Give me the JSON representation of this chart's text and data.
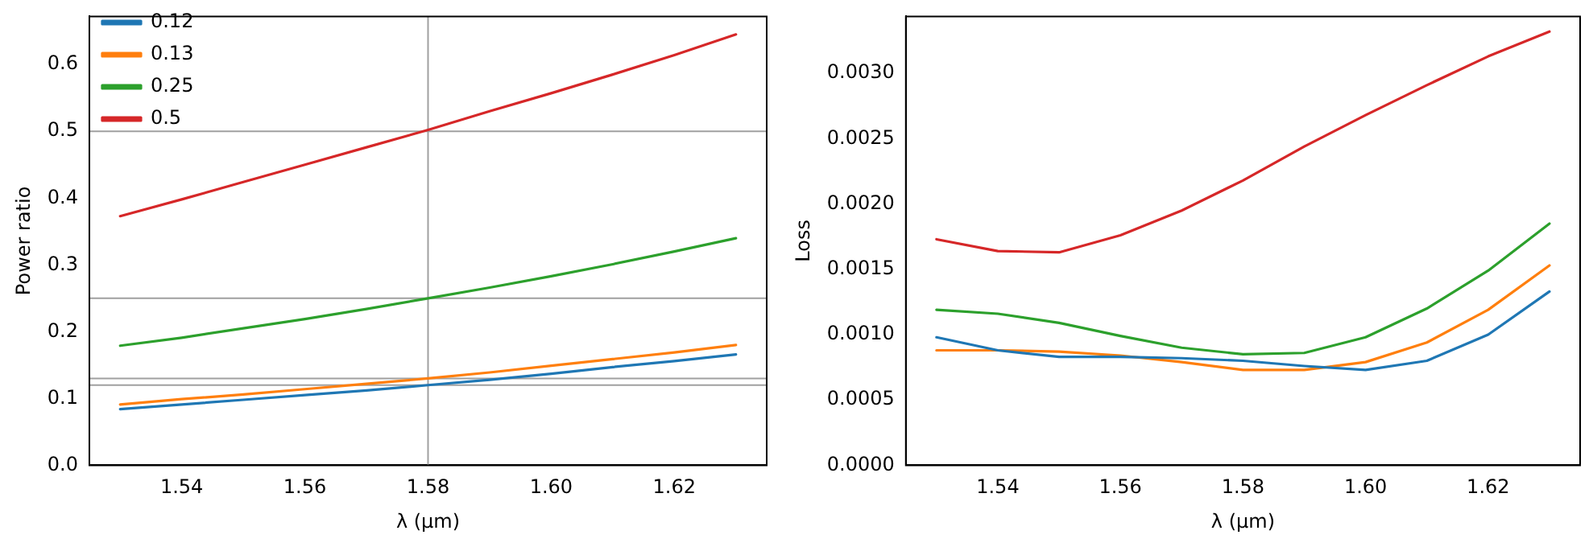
{
  "chart_data": [
    {
      "type": "line",
      "xlabel": "λ (µm)",
      "ylabel": "Power ratio",
      "legend": "top left",
      "grid": false,
      "x": [
        1.53,
        1.54,
        1.55,
        1.56,
        1.57,
        1.58,
        1.59,
        1.6,
        1.61,
        1.62,
        1.63
      ],
      "xlim": [
        1.525,
        1.635
      ],
      "xticks": [
        1.54,
        1.56,
        1.58,
        {
          "value": 1.6,
          "label": "1.60"
        },
        1.62
      ],
      "ylim": [
        0,
        0.672
      ],
      "yticks": [
        {
          "value": 0,
          "label": "0.0"
        },
        0.1,
        0.2,
        0.3,
        0.4,
        0.5,
        0.6
      ],
      "ref_lines": [
        {
          "axis": "x",
          "value": 1.58,
          "color": "#a0a0a0"
        },
        {
          "axis": "y",
          "value": 0.12,
          "color": "#a0a0a0"
        },
        {
          "axis": "y",
          "value": 0.13,
          "color": "#a0a0a0"
        },
        {
          "axis": "y",
          "value": 0.25,
          "color": "#a0a0a0"
        },
        {
          "axis": "y",
          "value": 0.5,
          "color": "#a0a0a0"
        }
      ],
      "series": [
        {
          "name": "0.12",
          "color": "#1f77b4",
          "values": [
            0.084,
            0.091,
            0.098,
            0.105,
            0.112,
            0.12,
            0.128,
            0.137,
            0.147,
            0.156,
            0.166
          ]
        },
        {
          "name": "0.13",
          "color": "#ff7f0e",
          "values": [
            0.091,
            0.099,
            0.106,
            0.114,
            0.122,
            0.13,
            0.139,
            0.149,
            0.159,
            0.169,
            0.18
          ]
        },
        {
          "name": "0.25",
          "color": "#2ca02c",
          "values": [
            0.179,
            0.191,
            0.205,
            0.219,
            0.234,
            0.25,
            0.266,
            0.283,
            0.301,
            0.32,
            0.34
          ]
        },
        {
          "name": "0.5",
          "color": "#d62728",
          "values": [
            0.373,
            0.398,
            0.424,
            0.45,
            0.476,
            0.502,
            0.53,
            0.557,
            0.585,
            0.614,
            0.645
          ]
        }
      ]
    },
    {
      "type": "line",
      "xlabel": "λ (µm)",
      "ylabel": "Loss",
      "grid": false,
      "x": [
        1.53,
        1.54,
        1.55,
        1.56,
        1.57,
        1.58,
        1.59,
        1.6,
        1.61,
        1.62,
        1.63
      ],
      "xlim": [
        1.525,
        1.635
      ],
      "xticks": [
        1.54,
        1.56,
        1.58,
        {
          "value": 1.6,
          "label": "1.60"
        },
        1.62
      ],
      "ylim": [
        0,
        0.003436
      ],
      "yticks": [
        {
          "value": 0,
          "label": "0.0000"
        },
        {
          "value": 0.0005,
          "label": "0.0005"
        },
        {
          "value": 0.001,
          "label": "0.0010"
        },
        {
          "value": 0.0015,
          "label": "0.0015"
        },
        {
          "value": 0.002,
          "label": "0.0020"
        },
        {
          "value": 0.0025,
          "label": "0.0025"
        },
        {
          "value": 0.003,
          "label": "0.0030"
        }
      ],
      "series": [
        {
          "color": "#1f77b4",
          "values": [
            0.00098,
            0.00088,
            0.00083,
            0.00083,
            0.00082,
            0.0008,
            0.00076,
            0.00073,
            0.0008,
            0.001,
            0.00133
          ]
        },
        {
          "color": "#ff7f0e",
          "values": [
            0.00088,
            0.00088,
            0.00087,
            0.00084,
            0.00079,
            0.00073,
            0.00073,
            0.00079,
            0.00094,
            0.00119,
            0.00153
          ]
        },
        {
          "color": "#2ca02c",
          "values": [
            0.00119,
            0.00116,
            0.00109,
            0.00099,
            0.0009,
            0.00085,
            0.00086,
            0.00098,
            0.0012,
            0.00149,
            0.00185
          ]
        },
        {
          "color": "#d62728",
          "values": [
            0.00173,
            0.00164,
            0.00163,
            0.00176,
            0.00195,
            0.00218,
            0.00244,
            0.00268,
            0.00291,
            0.00313,
            0.00332
          ]
        }
      ]
    }
  ]
}
